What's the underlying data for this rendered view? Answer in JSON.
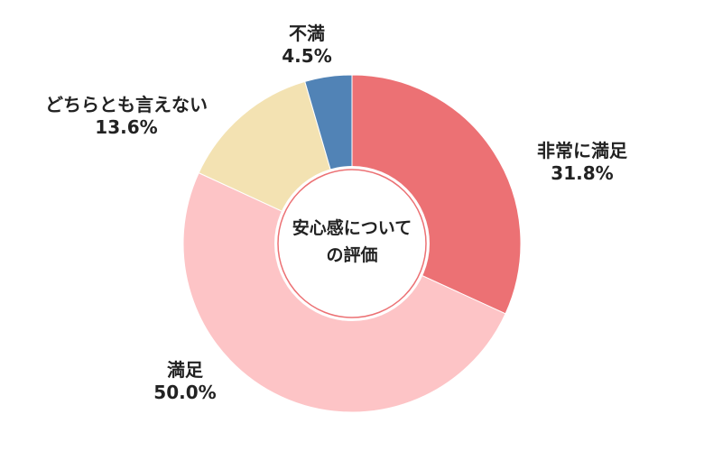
{
  "chart_data": {
    "type": "pie",
    "title": "",
    "center_label": [
      "安心感について",
      "の評価"
    ],
    "slices": [
      {
        "label": "非常に満足",
        "value": 31.8,
        "value_text": "31.8%",
        "color": "#ec7174"
      },
      {
        "label": "満足",
        "value": 50.0,
        "value_text": "50.0%",
        "color": "#fdc4c6"
      },
      {
        "label": "どちらとも言えない",
        "value": 13.6,
        "value_text": "13.6%",
        "color": "#f3e2b2"
      },
      {
        "label": "不満",
        "value": 4.5,
        "value_text": "4.5%",
        "color": "#5183b6"
      }
    ],
    "start": "12 o'clock",
    "direction": "clockwise",
    "legend": "none"
  }
}
